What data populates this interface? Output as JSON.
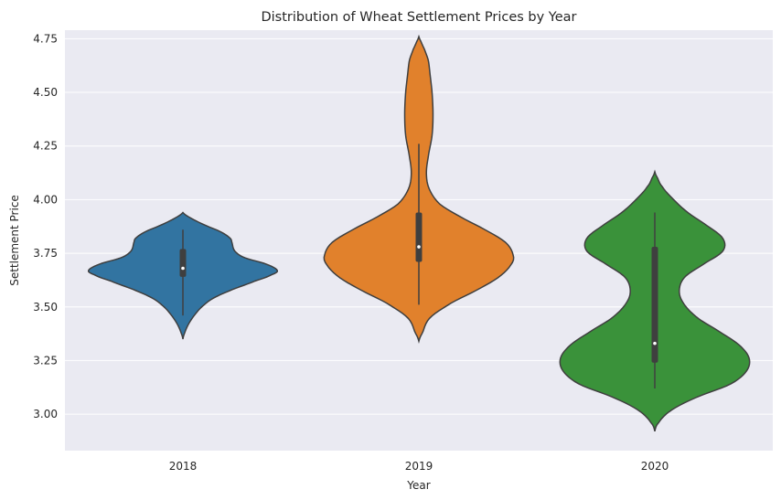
{
  "chart_data": {
    "type": "violin",
    "title": "Distribution of Wheat Settlement Prices by Year",
    "xlabel": "Year",
    "ylabel": "Settlement Price",
    "ylim": [
      2.83,
      4.79
    ],
    "yticks": [
      3.0,
      3.25,
      3.5,
      3.75,
      4.0,
      4.25,
      4.5,
      4.75
    ],
    "ytick_labels": [
      "3.00",
      "3.25",
      "3.50",
      "3.75",
      "4.00",
      "4.25",
      "4.50",
      "4.75"
    ],
    "grid": true,
    "legend": "none",
    "categories": [
      "2018",
      "2019",
      "2020"
    ],
    "series": [
      {
        "category": "2018",
        "color": "#3274a1",
        "min": 3.46,
        "q1": 3.64,
        "median": 3.68,
        "q3": 3.77,
        "max": 3.86,
        "kde_range": [
          3.35,
          3.94
        ],
        "density": [
          [
            3.35,
            0.0
          ],
          [
            3.38,
            0.02
          ],
          [
            3.42,
            0.06
          ],
          [
            3.46,
            0.12
          ],
          [
            3.5,
            0.2
          ],
          [
            3.54,
            0.32
          ],
          [
            3.58,
            0.52
          ],
          [
            3.62,
            0.76
          ],
          [
            3.65,
            0.94
          ],
          [
            3.67,
            1.0
          ],
          [
            3.7,
            0.88
          ],
          [
            3.73,
            0.65
          ],
          [
            3.76,
            0.55
          ],
          [
            3.8,
            0.52
          ],
          [
            3.82,
            0.5
          ],
          [
            3.85,
            0.4
          ],
          [
            3.88,
            0.24
          ],
          [
            3.91,
            0.1
          ],
          [
            3.94,
            0.0
          ]
        ]
      },
      {
        "category": "2019",
        "color": "#e1812c",
        "min": 3.51,
        "q1": 3.71,
        "median": 3.78,
        "q3": 3.94,
        "max": 4.26,
        "kde_range": [
          3.34,
          4.76
        ],
        "density": [
          [
            3.34,
            0.0
          ],
          [
            3.38,
            0.04
          ],
          [
            3.45,
            0.12
          ],
          [
            3.52,
            0.35
          ],
          [
            3.58,
            0.62
          ],
          [
            3.64,
            0.85
          ],
          [
            3.7,
            0.98
          ],
          [
            3.74,
            1.0
          ],
          [
            3.8,
            0.92
          ],
          [
            3.86,
            0.7
          ],
          [
            3.92,
            0.44
          ],
          [
            3.98,
            0.22
          ],
          [
            4.05,
            0.11
          ],
          [
            4.12,
            0.08
          ],
          [
            4.2,
            0.1
          ],
          [
            4.3,
            0.14
          ],
          [
            4.4,
            0.15
          ],
          [
            4.5,
            0.14
          ],
          [
            4.58,
            0.12
          ],
          [
            4.65,
            0.1
          ],
          [
            4.7,
            0.06
          ],
          [
            4.74,
            0.02
          ],
          [
            4.76,
            0.0
          ]
        ]
      },
      {
        "category": "2020",
        "color": "#3a923a",
        "min": 3.12,
        "q1": 3.24,
        "median": 3.33,
        "q3": 3.78,
        "max": 3.94,
        "kde_range": [
          2.92,
          4.13
        ],
        "density": [
          [
            2.92,
            0.0
          ],
          [
            2.96,
            0.04
          ],
          [
            3.02,
            0.18
          ],
          [
            3.08,
            0.45
          ],
          [
            3.14,
            0.8
          ],
          [
            3.2,
            0.97
          ],
          [
            3.26,
            1.0
          ],
          [
            3.32,
            0.9
          ],
          [
            3.38,
            0.7
          ],
          [
            3.45,
            0.45
          ],
          [
            3.52,
            0.3
          ],
          [
            3.58,
            0.26
          ],
          [
            3.64,
            0.32
          ],
          [
            3.7,
            0.52
          ],
          [
            3.76,
            0.72
          ],
          [
            3.82,
            0.72
          ],
          [
            3.88,
            0.55
          ],
          [
            3.94,
            0.35
          ],
          [
            4.0,
            0.2
          ],
          [
            4.06,
            0.08
          ],
          [
            4.1,
            0.03
          ],
          [
            4.13,
            0.0
          ]
        ]
      }
    ]
  }
}
